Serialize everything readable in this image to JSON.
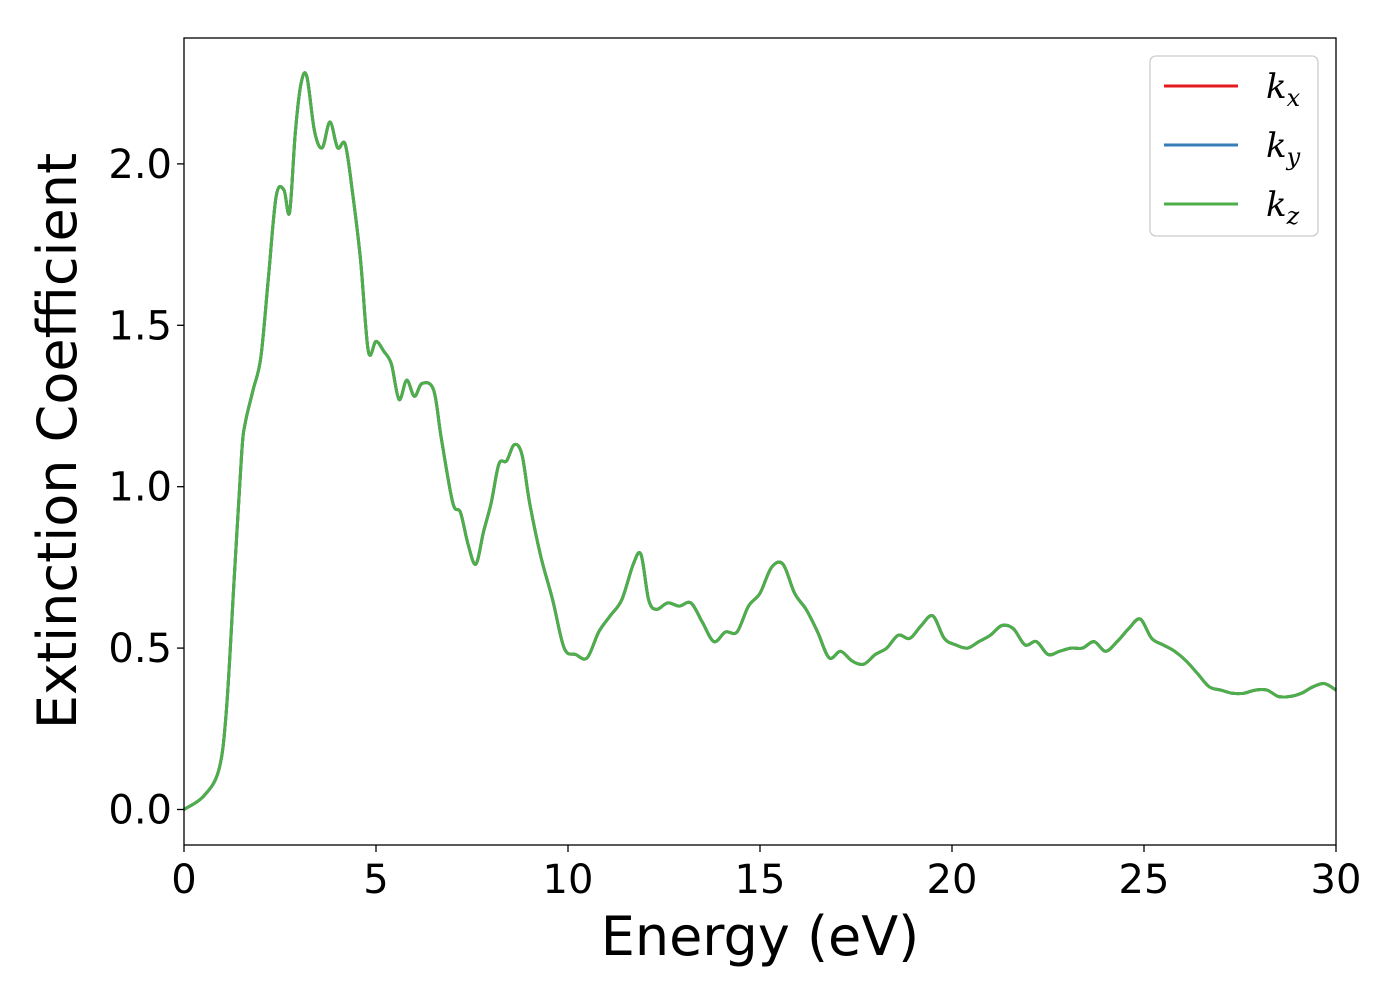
{
  "chart_data": {
    "type": "line",
    "title": "",
    "xlabel": "Energy (eV)",
    "ylabel": "Extinction Coefficient",
    "xlim": [
      0,
      30
    ],
    "ylim": [
      -0.11,
      2.39
    ],
    "xticks": [
      0,
      5,
      10,
      15,
      20,
      25,
      30
    ],
    "xtick_labels": [
      "0",
      "5",
      "10",
      "15",
      "20",
      "25",
      "30"
    ],
    "yticks": [
      0.0,
      0.5,
      1.0,
      1.5,
      2.0
    ],
    "ytick_labels": [
      "0.0",
      "0.5",
      "1.0",
      "1.5",
      "2.0"
    ],
    "grid": false,
    "legend_position": "top-right",
    "series": [
      {
        "name": "k",
        "subscript": "x",
        "color": "#e41a1c",
        "values": "same as k_z"
      },
      {
        "name": "k",
        "subscript": "y",
        "color": "#377eb8",
        "values": "same as k_z"
      },
      {
        "name": "k",
        "subscript": "z",
        "color": "#4daf4a"
      }
    ],
    "x": [
      0,
      0.5,
      0.9,
      1.1,
      1.3,
      1.5,
      1.6,
      1.8,
      2.0,
      2.2,
      2.4,
      2.6,
      2.75,
      2.9,
      3.05,
      3.2,
      3.4,
      3.6,
      3.8,
      4.0,
      4.2,
      4.4,
      4.6,
      4.8,
      5.0,
      5.2,
      5.4,
      5.6,
      5.8,
      6.0,
      6.2,
      6.5,
      6.7,
      7.0,
      7.2,
      7.4,
      7.6,
      7.8,
      8.0,
      8.2,
      8.4,
      8.6,
      8.8,
      9.0,
      9.3,
      9.6,
      9.9,
      10.2,
      10.5,
      10.8,
      11.1,
      11.4,
      11.7,
      11.9,
      12.1,
      12.3,
      12.6,
      12.9,
      13.2,
      13.5,
      13.8,
      14.1,
      14.4,
      14.7,
      15.0,
      15.3,
      15.6,
      15.9,
      16.2,
      16.5,
      16.8,
      17.1,
      17.4,
      17.7,
      18.0,
      18.3,
      18.6,
      18.9,
      19.2,
      19.5,
      19.8,
      20.1,
      20.4,
      20.7,
      21.0,
      21.3,
      21.6,
      21.9,
      22.2,
      22.5,
      22.8,
      23.1,
      23.4,
      23.7,
      24.0,
      24.3,
      24.6,
      24.9,
      25.2,
      25.5,
      25.8,
      26.1,
      26.4,
      26.7,
      27.0,
      27.3,
      27.6,
      27.9,
      28.2,
      28.5,
      28.8,
      29.1,
      29.4,
      29.7,
      30.0
    ],
    "values": [
      0.0,
      0.04,
      0.12,
      0.3,
      0.7,
      1.1,
      1.2,
      1.3,
      1.4,
      1.65,
      1.9,
      1.92,
      1.85,
      2.1,
      2.25,
      2.27,
      2.1,
      2.05,
      2.13,
      2.05,
      2.06,
      1.9,
      1.7,
      1.42,
      1.45,
      1.42,
      1.38,
      1.27,
      1.33,
      1.28,
      1.32,
      1.3,
      1.15,
      0.95,
      0.92,
      0.82,
      0.76,
      0.86,
      0.95,
      1.07,
      1.08,
      1.13,
      1.1,
      0.95,
      0.78,
      0.65,
      0.5,
      0.48,
      0.47,
      0.55,
      0.6,
      0.65,
      0.76,
      0.79,
      0.65,
      0.62,
      0.64,
      0.63,
      0.64,
      0.58,
      0.52,
      0.55,
      0.55,
      0.63,
      0.67,
      0.75,
      0.76,
      0.67,
      0.62,
      0.55,
      0.47,
      0.49,
      0.46,
      0.45,
      0.48,
      0.5,
      0.54,
      0.53,
      0.57,
      0.6,
      0.53,
      0.51,
      0.5,
      0.52,
      0.54,
      0.57,
      0.56,
      0.51,
      0.52,
      0.48,
      0.49,
      0.5,
      0.5,
      0.52,
      0.49,
      0.52,
      0.56,
      0.59,
      0.53,
      0.51,
      0.49,
      0.46,
      0.42,
      0.38,
      0.37,
      0.36,
      0.36,
      0.37,
      0.37,
      0.35,
      0.35,
      0.36,
      0.38,
      0.39,
      0.37
    ]
  }
}
